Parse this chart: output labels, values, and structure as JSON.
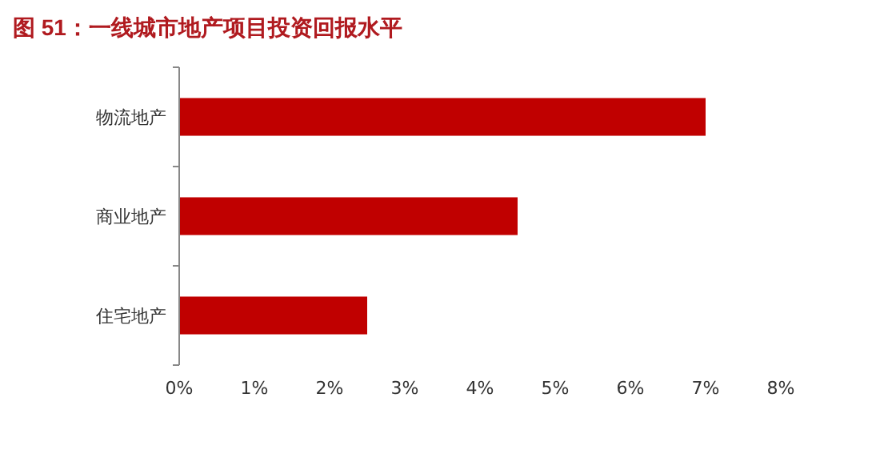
{
  "chart_data": {
    "type": "bar",
    "orientation": "horizontal",
    "title": "图 51：一线城市地产项目投资回报水平",
    "categories": [
      "物流地产",
      "商业地产",
      "住宅地产"
    ],
    "values": [
      7.0,
      4.5,
      2.5
    ],
    "color": "#c00000",
    "xlim": [
      0,
      8
    ],
    "xticks": [
      {
        "value": 0,
        "label": "0%"
      },
      {
        "value": 1,
        "label": "1%"
      },
      {
        "value": 2,
        "label": "2%"
      },
      {
        "value": 3,
        "label": "3%"
      },
      {
        "value": 4,
        "label": "4%"
      },
      {
        "value": 5,
        "label": "5%"
      },
      {
        "value": 6,
        "label": "6%"
      },
      {
        "value": 7,
        "label": "7%"
      },
      {
        "value": 8,
        "label": "8%"
      }
    ],
    "grid": false
  }
}
